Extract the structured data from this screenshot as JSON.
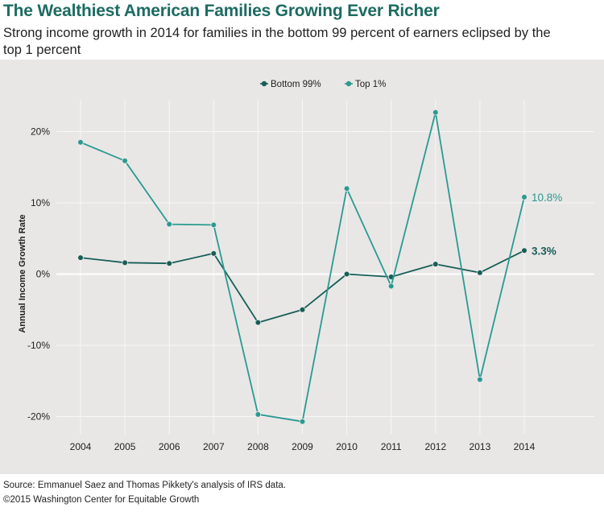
{
  "header": {
    "title": "The Wealthiest American Families Growing Ever Richer",
    "subtitle": "Strong income growth in 2014 for families in the bottom 99 percent of earners eclipsed by the top 1 percent"
  },
  "colors": {
    "title": "#1d6b62",
    "bottom_series": "#175e57",
    "top_series": "#2a9a91",
    "background": "#e8e7e6"
  },
  "chart_data": {
    "type": "line",
    "x": [
      "2004",
      "2005",
      "2006",
      "2007",
      "2008",
      "2009",
      "2010",
      "2011",
      "2012",
      "2013",
      "2014"
    ],
    "series": [
      {
        "name": "Bottom 99%",
        "color": "#175e57",
        "values": [
          2.3,
          1.6,
          1.5,
          2.9,
          -6.8,
          -5.0,
          0.0,
          -0.4,
          1.4,
          0.2,
          3.3
        ],
        "end_label": "3.3%"
      },
      {
        "name": "Top 1%",
        "color": "#2a9a91",
        "values": [
          18.5,
          15.9,
          7.0,
          6.9,
          -19.7,
          -20.7,
          12.0,
          -1.7,
          22.7,
          -14.8,
          10.8
        ],
        "end_label": "10.8%"
      }
    ],
    "ylabel": "Annual Income Growth Rate",
    "yticks": [
      {
        "value": 20,
        "label": "20%"
      },
      {
        "value": 10,
        "label": "10%"
      },
      {
        "value": 0,
        "label": "0%"
      },
      {
        "value": -10,
        "label": "-10%"
      },
      {
        "value": -20,
        "label": "-20%"
      }
    ],
    "ylim": [
      -22.5,
      24.5
    ],
    "grid": true,
    "legend_position": "top-center"
  },
  "footer": {
    "source": "Source: Emmanuel Saez and Thomas Pikkety's analysis of IRS data.",
    "copyright": "©2015 Washington Center for Equitable Growth"
  }
}
